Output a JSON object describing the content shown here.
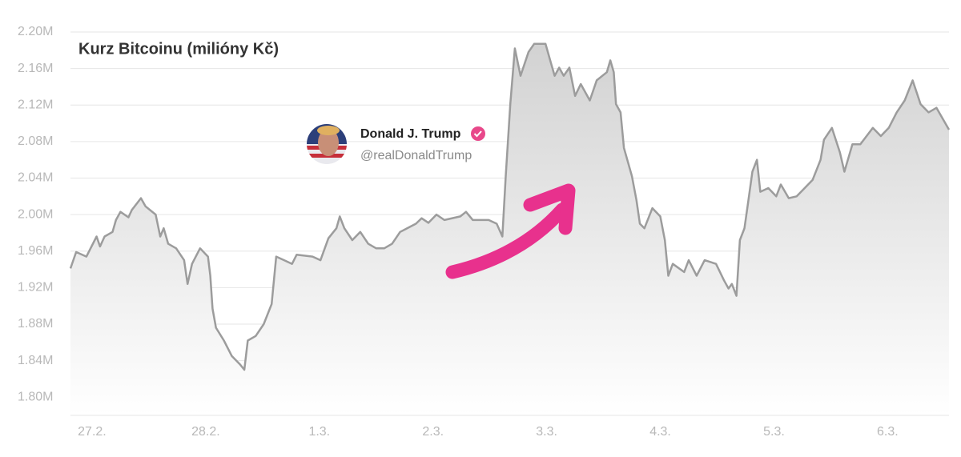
{
  "chart_data": {
    "type": "line",
    "title": "Kurz Bitcoinu (milióny Kč)",
    "color": "#9c9c9c",
    "grid": true,
    "ylim": [
      1780000,
      2200000
    ],
    "yticks": [
      {
        "value": 1800000,
        "label": "1.80M"
      },
      {
        "value": 1840000,
        "label": "1.84M"
      },
      {
        "value": 1880000,
        "label": "1.88M"
      },
      {
        "value": 1920000,
        "label": "1.92M"
      },
      {
        "value": 1960000,
        "label": "1.96M"
      },
      {
        "value": 2000000,
        "label": "2.00M"
      },
      {
        "value": 2040000,
        "label": "2.04M"
      },
      {
        "value": 2080000,
        "label": "2.08M"
      },
      {
        "value": 2120000,
        "label": "2.12M"
      },
      {
        "value": 2160000,
        "label": "2.16M"
      },
      {
        "value": 2200000,
        "label": "2.20M"
      }
    ],
    "xlim": [
      -0.19,
      7.54
    ],
    "xticks": [
      {
        "value": 0,
        "label": "27.2."
      },
      {
        "value": 1,
        "label": "28.2."
      },
      {
        "value": 2,
        "label": "1.3."
      },
      {
        "value": 3,
        "label": "2.3."
      },
      {
        "value": 4,
        "label": "3.3."
      },
      {
        "value": 5,
        "label": "4.3."
      },
      {
        "value": 6,
        "label": "5.3."
      },
      {
        "value": 7,
        "label": "6.3."
      }
    ],
    "x": [
      -0.19,
      -0.14,
      -0.05,
      0.04,
      0.07,
      0.11,
      0.18,
      0.21,
      0.25,
      0.32,
      0.35,
      0.43,
      0.47,
      0.56,
      0.6,
      0.63,
      0.67,
      0.74,
      0.81,
      0.84,
      0.88,
      0.95,
      1.02,
      1.04,
      1.06,
      1.09,
      1.16,
      1.23,
      1.3,
      1.34,
      1.37,
      1.44,
      1.51,
      1.58,
      1.62,
      1.69,
      1.76,
      1.8,
      1.94,
      2.01,
      2.08,
      2.15,
      2.18,
      2.22,
      2.29,
      2.36,
      2.43,
      2.5,
      2.57,
      2.64,
      2.71,
      2.85,
      2.9,
      2.96,
      3.03,
      3.1,
      3.24,
      3.29,
      3.35,
      3.49,
      3.56,
      3.61,
      3.64,
      3.68,
      3.72,
      3.77,
      3.84,
      3.89,
      3.99,
      4.04,
      4.07,
      4.11,
      4.15,
      4.2,
      4.25,
      4.3,
      4.38,
      4.44,
      4.53,
      4.56,
      4.59,
      4.61,
      4.65,
      4.68,
      4.75,
      4.79,
      4.82,
      4.86,
      4.93,
      5.0,
      5.04,
      5.07,
      5.11,
      5.21,
      5.25,
      5.32,
      5.39,
      5.49,
      5.56,
      5.6,
      5.63,
      5.67,
      5.7,
      5.74,
      5.77,
      5.81,
      5.85,
      5.88,
      5.95,
      6.02,
      6.06,
      6.13,
      6.2,
      6.27,
      6.34,
      6.41,
      6.44,
      6.51,
      6.58,
      6.62,
      6.69,
      6.76,
      6.87,
      6.94,
      7.01,
      7.08,
      7.15,
      7.22,
      7.29,
      7.36,
      7.43,
      7.54
    ],
    "values": [
      1941000,
      1959000,
      1954000,
      1976000,
      1965000,
      1976000,
      1981000,
      1994000,
      2003000,
      1997000,
      2005000,
      2018000,
      2009000,
      2000000,
      1976000,
      1985000,
      1968000,
      1963000,
      1950000,
      1924000,
      1946000,
      1963000,
      1954000,
      1933000,
      1897000,
      1876000,
      1862000,
      1845000,
      1836000,
      1830000,
      1862000,
      1867000,
      1880000,
      1902000,
      1954000,
      1950000,
      1946000,
      1956000,
      1954000,
      1950000,
      1974000,
      1985000,
      1998000,
      1985000,
      1972000,
      1981000,
      1968000,
      1963000,
      1963000,
      1968000,
      1981000,
      1990000,
      1996000,
      1991000,
      2000000,
      1994000,
      1998000,
      2003000,
      1994000,
      1994000,
      1990000,
      1976000,
      2042000,
      2121000,
      2182000,
      2152000,
      2178000,
      2187000,
      2187000,
      2165000,
      2152000,
      2161000,
      2152000,
      2161000,
      2130000,
      2143000,
      2125000,
      2147000,
      2156000,
      2169000,
      2156000,
      2121000,
      2112000,
      2073000,
      2042000,
      2016000,
      1990000,
      1985000,
      2007000,
      1998000,
      1972000,
      1933000,
      1946000,
      1937000,
      1950000,
      1933000,
      1950000,
      1946000,
      1928000,
      1919000,
      1924000,
      1911000,
      1972000,
      1985000,
      2011000,
      2047000,
      2060000,
      2025000,
      2029000,
      2020000,
      2033000,
      2018000,
      2020000,
      2029000,
      2038000,
      2060000,
      2082000,
      2095000,
      2068000,
      2047000,
      2077000,
      2077000,
      2095000,
      2086000,
      2095000,
      2112000,
      2125000,
      2147000,
      2121000,
      2112000,
      2117000,
      2093000
    ],
    "annotation": {
      "name": "Donald J. Trump",
      "handle": "@realDonaldTrump"
    }
  }
}
